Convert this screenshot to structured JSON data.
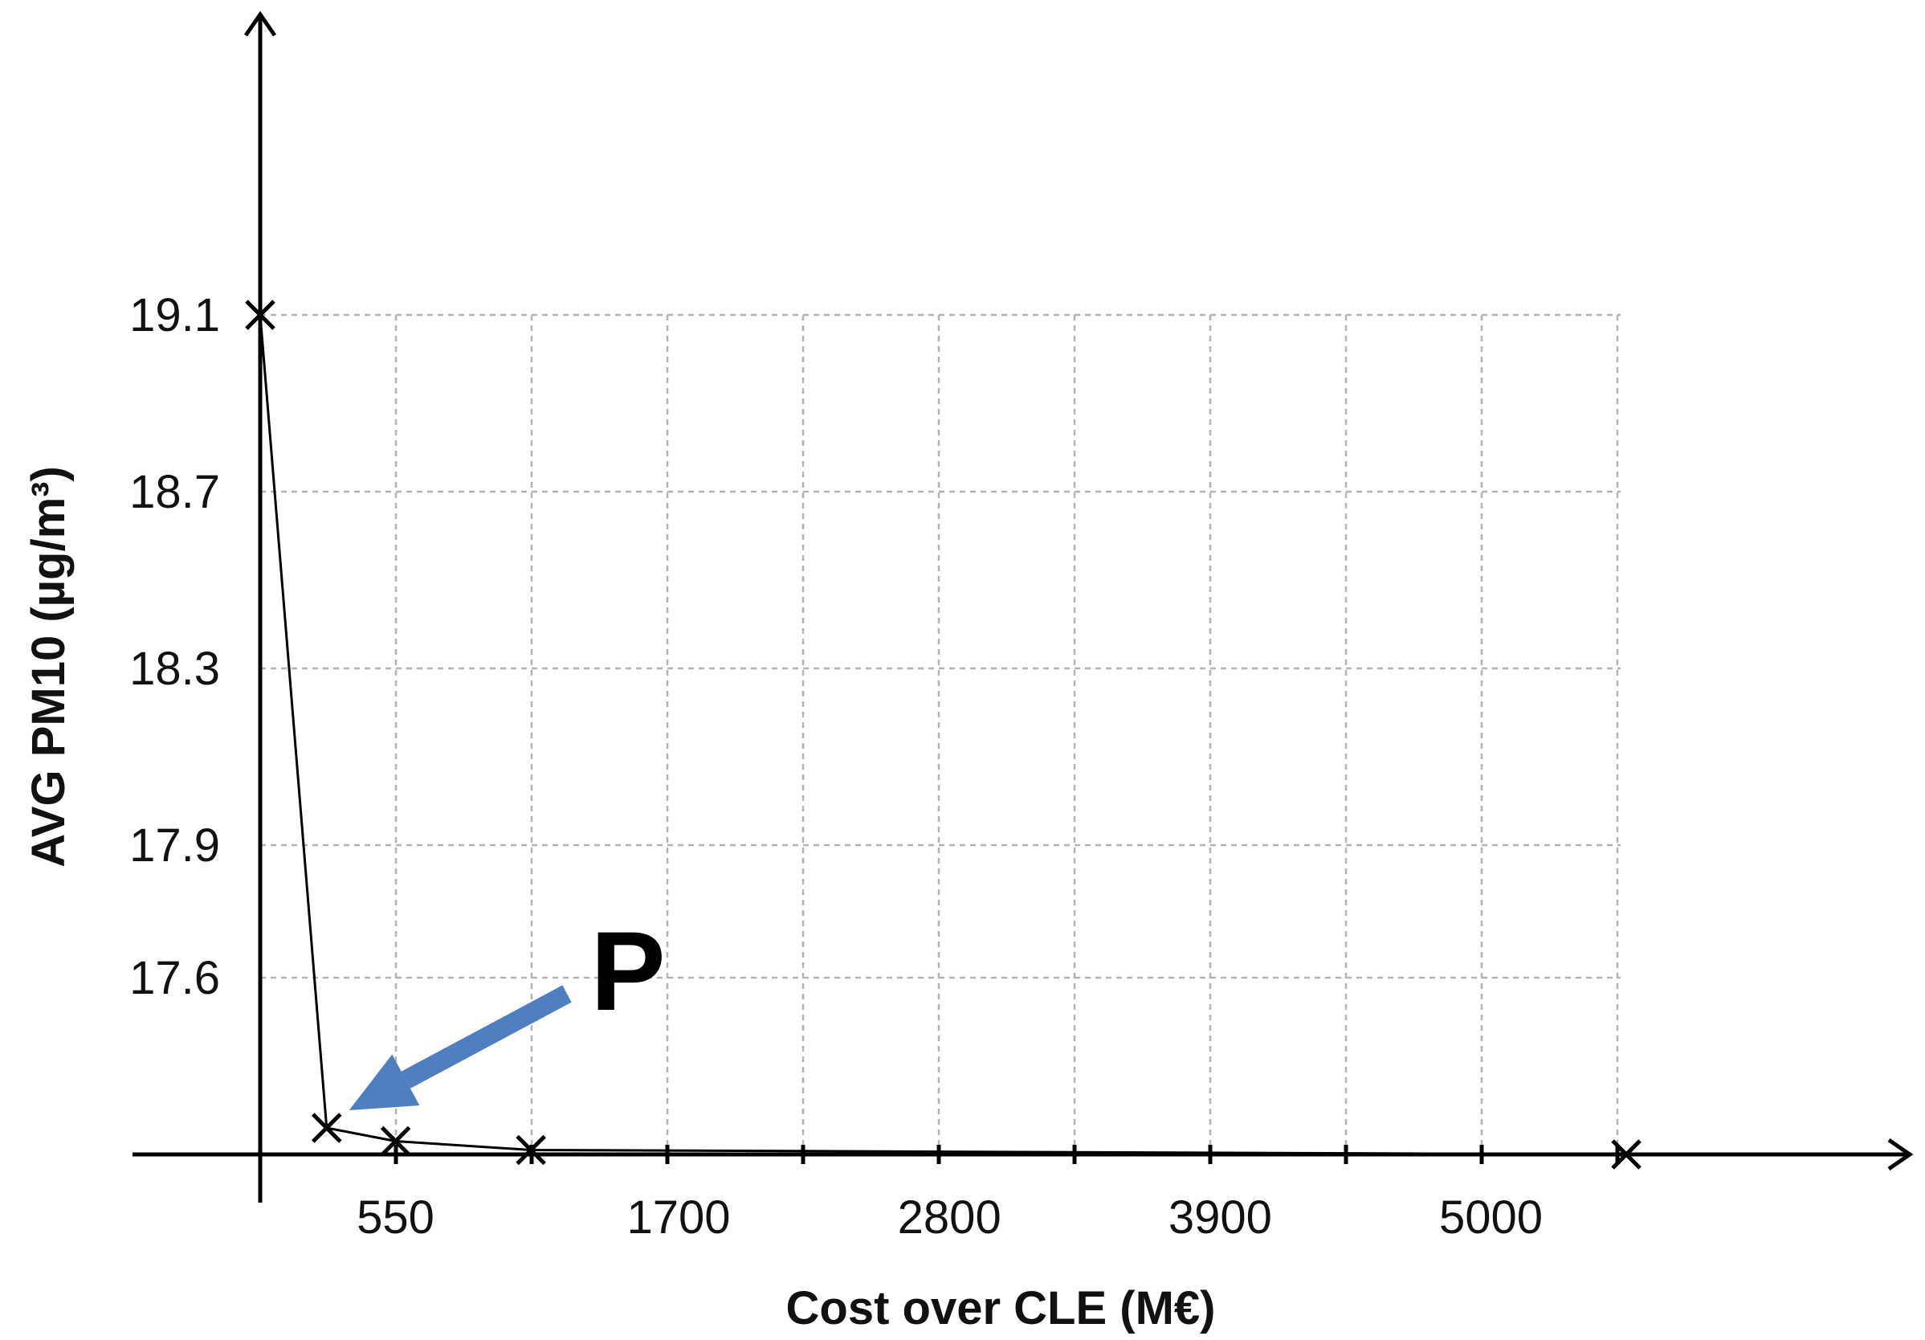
{
  "chart_data": {
    "type": "line",
    "xlabel": "Cost over CLE (M€)",
    "ylabel": "AVG PM10 (µg/m³)",
    "x_ticks": [
      550,
      1700,
      2800,
      3900,
      5000
    ],
    "y_ticks": [
      17.6,
      17.9,
      18.3,
      18.7,
      19.1
    ],
    "xlim": [
      0,
      6650
    ],
    "ylim": [
      17.2,
      19.6
    ],
    "grid": true,
    "series": [
      {
        "x": [
          0,
          270,
          550,
          1100,
          5550
        ],
        "y": [
          19.1,
          17.26,
          17.23,
          17.21,
          17.2
        ],
        "marker": "x",
        "color": "#000000"
      }
    ],
    "annotations": [
      {
        "text": "P",
        "target_index": 1,
        "arrow_color": "#4f7fbf"
      }
    ]
  }
}
